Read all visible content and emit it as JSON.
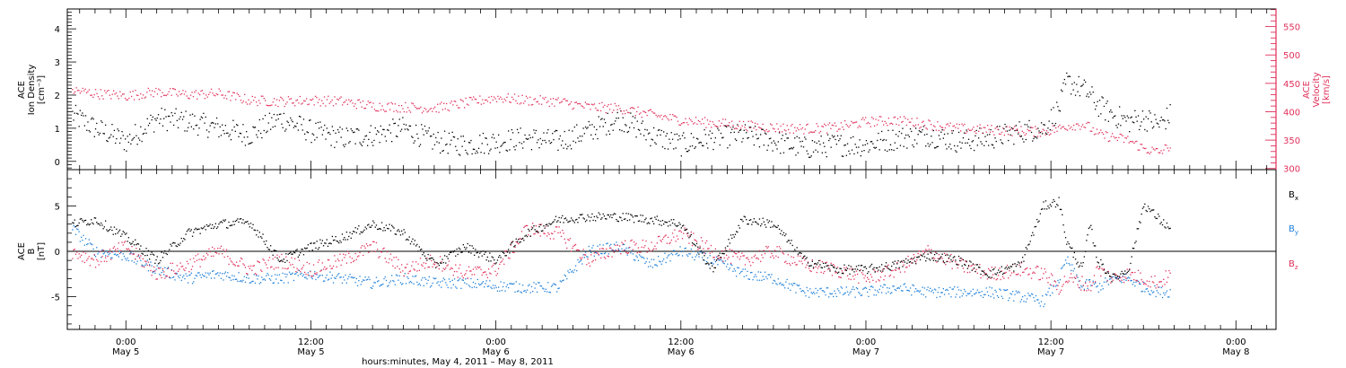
{
  "figure": {
    "xlabel": "hours:minutes, May  4, 2011 – May  8, 2011",
    "tick_times": [
      "0:00",
      "12:00",
      "0:00",
      "12:00",
      "0:00",
      "12:00",
      "0:00"
    ],
    "tick_dates": [
      "May 5",
      "May 5",
      "May 6",
      "May 6",
      "May 7",
      "May 7",
      "May 8"
    ]
  },
  "chart_data": [
    {
      "type": "scatter",
      "title": "",
      "x_unit": "hours since May 4, 2011 00:00",
      "xlim": [
        20.2,
        98.6
      ],
      "ylabel_left": [
        "ACE",
        "Ion Density",
        "[cm⁻³]"
      ],
      "ylabel_right": [
        "ACE",
        "Velocity",
        "[km/s]"
      ],
      "ylim_left": [
        -0.25,
        4.6
      ],
      "ylim_right": [
        298,
        581
      ],
      "yticks_left": [
        "0",
        "1",
        "2",
        "3",
        "4"
      ],
      "yticks_right": [
        "300",
        "350",
        "400",
        "450",
        "500",
        "550"
      ],
      "right_axis_color": "#e0305a",
      "series": [
        {
          "name": "Ion Density",
          "axis": "left",
          "color": "#000000",
          "x": [
            20.5,
            22,
            24,
            26,
            28,
            30,
            32,
            34,
            36,
            38,
            40,
            42,
            44,
            46,
            48,
            50,
            52,
            54,
            56,
            58,
            60,
            62,
            64,
            66,
            68,
            70,
            72,
            74,
            76,
            78,
            80,
            82,
            83.5,
            84.5,
            85,
            86,
            86.5,
            87,
            88,
            89,
            90,
            91,
            91.7
          ],
          "y": [
            1.4,
            1.0,
            0.6,
            1.3,
            1.2,
            1.0,
            0.8,
            1.3,
            0.9,
            0.7,
            0.8,
            1.0,
            0.6,
            0.5,
            0.6,
            0.7,
            0.6,
            0.9,
            1.3,
            0.8,
            0.5,
            0.7,
            0.8,
            0.6,
            0.4,
            0.5,
            0.5,
            0.7,
            0.8,
            0.6,
            0.7,
            0.9,
            1.0,
            1.6,
            2.4,
            2.2,
            2.0,
            1.7,
            1.4,
            1.2,
            1.3,
            1.1,
            1.4
          ]
        },
        {
          "name": "Velocity",
          "axis": "right",
          "color": "#e0305a",
          "x": [
            20.5,
            22,
            24,
            26,
            28,
            30,
            32,
            34,
            36,
            38,
            40,
            42,
            44,
            46,
            48,
            50,
            52,
            54,
            56,
            58,
            60,
            62,
            64,
            66,
            68,
            70,
            72,
            74,
            76,
            78,
            80,
            82,
            83.5,
            84.5,
            85,
            86,
            86.5,
            87,
            88,
            89,
            90,
            91,
            91.7
          ],
          "y": [
            438,
            432,
            428,
            435,
            430,
            432,
            420,
            418,
            420,
            418,
            410,
            408,
            406,
            415,
            425,
            420,
            418,
            408,
            406,
            395,
            385,
            380,
            376,
            372,
            370,
            372,
            382,
            385,
            378,
            370,
            368,
            366,
            365,
            370,
            375,
            378,
            372,
            360,
            355,
            350,
            335,
            328,
            340
          ]
        }
      ],
      "grid": false
    },
    {
      "type": "scatter",
      "title": "",
      "x_unit": "hours since May 4, 2011 00:00",
      "xlim": [
        20.2,
        98.6
      ],
      "ylabel": [
        "ACE",
        "B",
        "[nT]"
      ],
      "ylim": [
        -8.6,
        9.0
      ],
      "yticks": [
        "-5",
        "0",
        "5"
      ],
      "zero_line": true,
      "series": [
        {
          "name": "Bx",
          "color": "#000000",
          "x": [
            20.5,
            22,
            24,
            26,
            28,
            30,
            32,
            34,
            36,
            38,
            40,
            42,
            44,
            46,
            48,
            50,
            52,
            54,
            56,
            58,
            60,
            62,
            64,
            66,
            68,
            70,
            72,
            74,
            76,
            78,
            80,
            82,
            83.5,
            84.5,
            85,
            86,
            86.5,
            87,
            88,
            89,
            90,
            91,
            91.7
          ],
          "y": [
            3.0,
            3.5,
            1.5,
            -1.0,
            2.0,
            3.0,
            3.2,
            -1.0,
            0.5,
            1.5,
            3.0,
            2.0,
            -1.5,
            0.5,
            -1.0,
            2.0,
            3.5,
            3.8,
            3.8,
            3.5,
            3.0,
            -2.0,
            3.5,
            3.0,
            -1.0,
            -2.0,
            -2.0,
            -1.5,
            -0.5,
            -1.0,
            -2.5,
            -1.5,
            5.0,
            5.5,
            1.0,
            -2.0,
            3.0,
            -1.0,
            -3.0,
            -2.0,
            5.2,
            3.5,
            2.5
          ]
        },
        {
          "name": "By",
          "color": "#1e7fd8",
          "x": [
            20.5,
            22,
            24,
            26,
            28,
            30,
            32,
            34,
            36,
            38,
            40,
            42,
            44,
            46,
            48,
            50,
            52,
            54,
            56,
            58,
            60,
            62,
            64,
            66,
            68,
            70,
            72,
            74,
            76,
            78,
            80,
            82,
            83.5,
            84.5,
            85,
            86,
            86.5,
            87,
            88,
            89,
            90,
            91,
            91.7
          ],
          "y": [
            2.5,
            0.0,
            -0.5,
            -2.0,
            -3.0,
            -2.5,
            -3.0,
            -3.0,
            -2.5,
            -3.0,
            -3.5,
            -3.0,
            -3.5,
            -3.5,
            -3.8,
            -4.0,
            -4.0,
            0.0,
            0.5,
            -1.5,
            0.0,
            -1.0,
            -2.5,
            -3.0,
            -4.5,
            -4.5,
            -4.5,
            -4.0,
            -4.5,
            -4.5,
            -4.5,
            -5.0,
            -5.5,
            -3.0,
            -1.0,
            -4.0,
            -3.5,
            -4.0,
            -3.0,
            -3.0,
            -4.0,
            -4.5,
            -4.5
          ]
        },
        {
          "name": "Bz",
          "color": "#e0305a",
          "x": [
            20.5,
            22,
            24,
            26,
            28,
            30,
            32,
            34,
            36,
            38,
            40,
            42,
            44,
            46,
            48,
            50,
            52,
            54,
            56,
            58,
            60,
            62,
            64,
            66,
            68,
            70,
            72,
            74,
            76,
            78,
            80,
            82,
            83.5,
            84.5,
            85,
            86,
            86.5,
            87,
            88,
            89,
            90,
            91,
            91.7
          ],
          "y": [
            0.0,
            -1.0,
            0.5,
            -2.5,
            -1.5,
            0.0,
            -2.0,
            -1.0,
            -2.0,
            -1.0,
            0.5,
            -2.0,
            -1.0,
            -2.5,
            -2.0,
            2.5,
            2.0,
            -1.0,
            0.5,
            0.5,
            2.0,
            0.0,
            -1.0,
            0.0,
            -1.5,
            -2.0,
            -3.0,
            -2.0,
            0.0,
            -1.5,
            -2.5,
            -2.0,
            -2.5,
            -4.0,
            -3.0,
            -3.5,
            -4.0,
            -2.0,
            -3.0,
            -2.5,
            -3.0,
            -3.5,
            -2.5
          ]
        }
      ],
      "grid": false
    }
  ]
}
